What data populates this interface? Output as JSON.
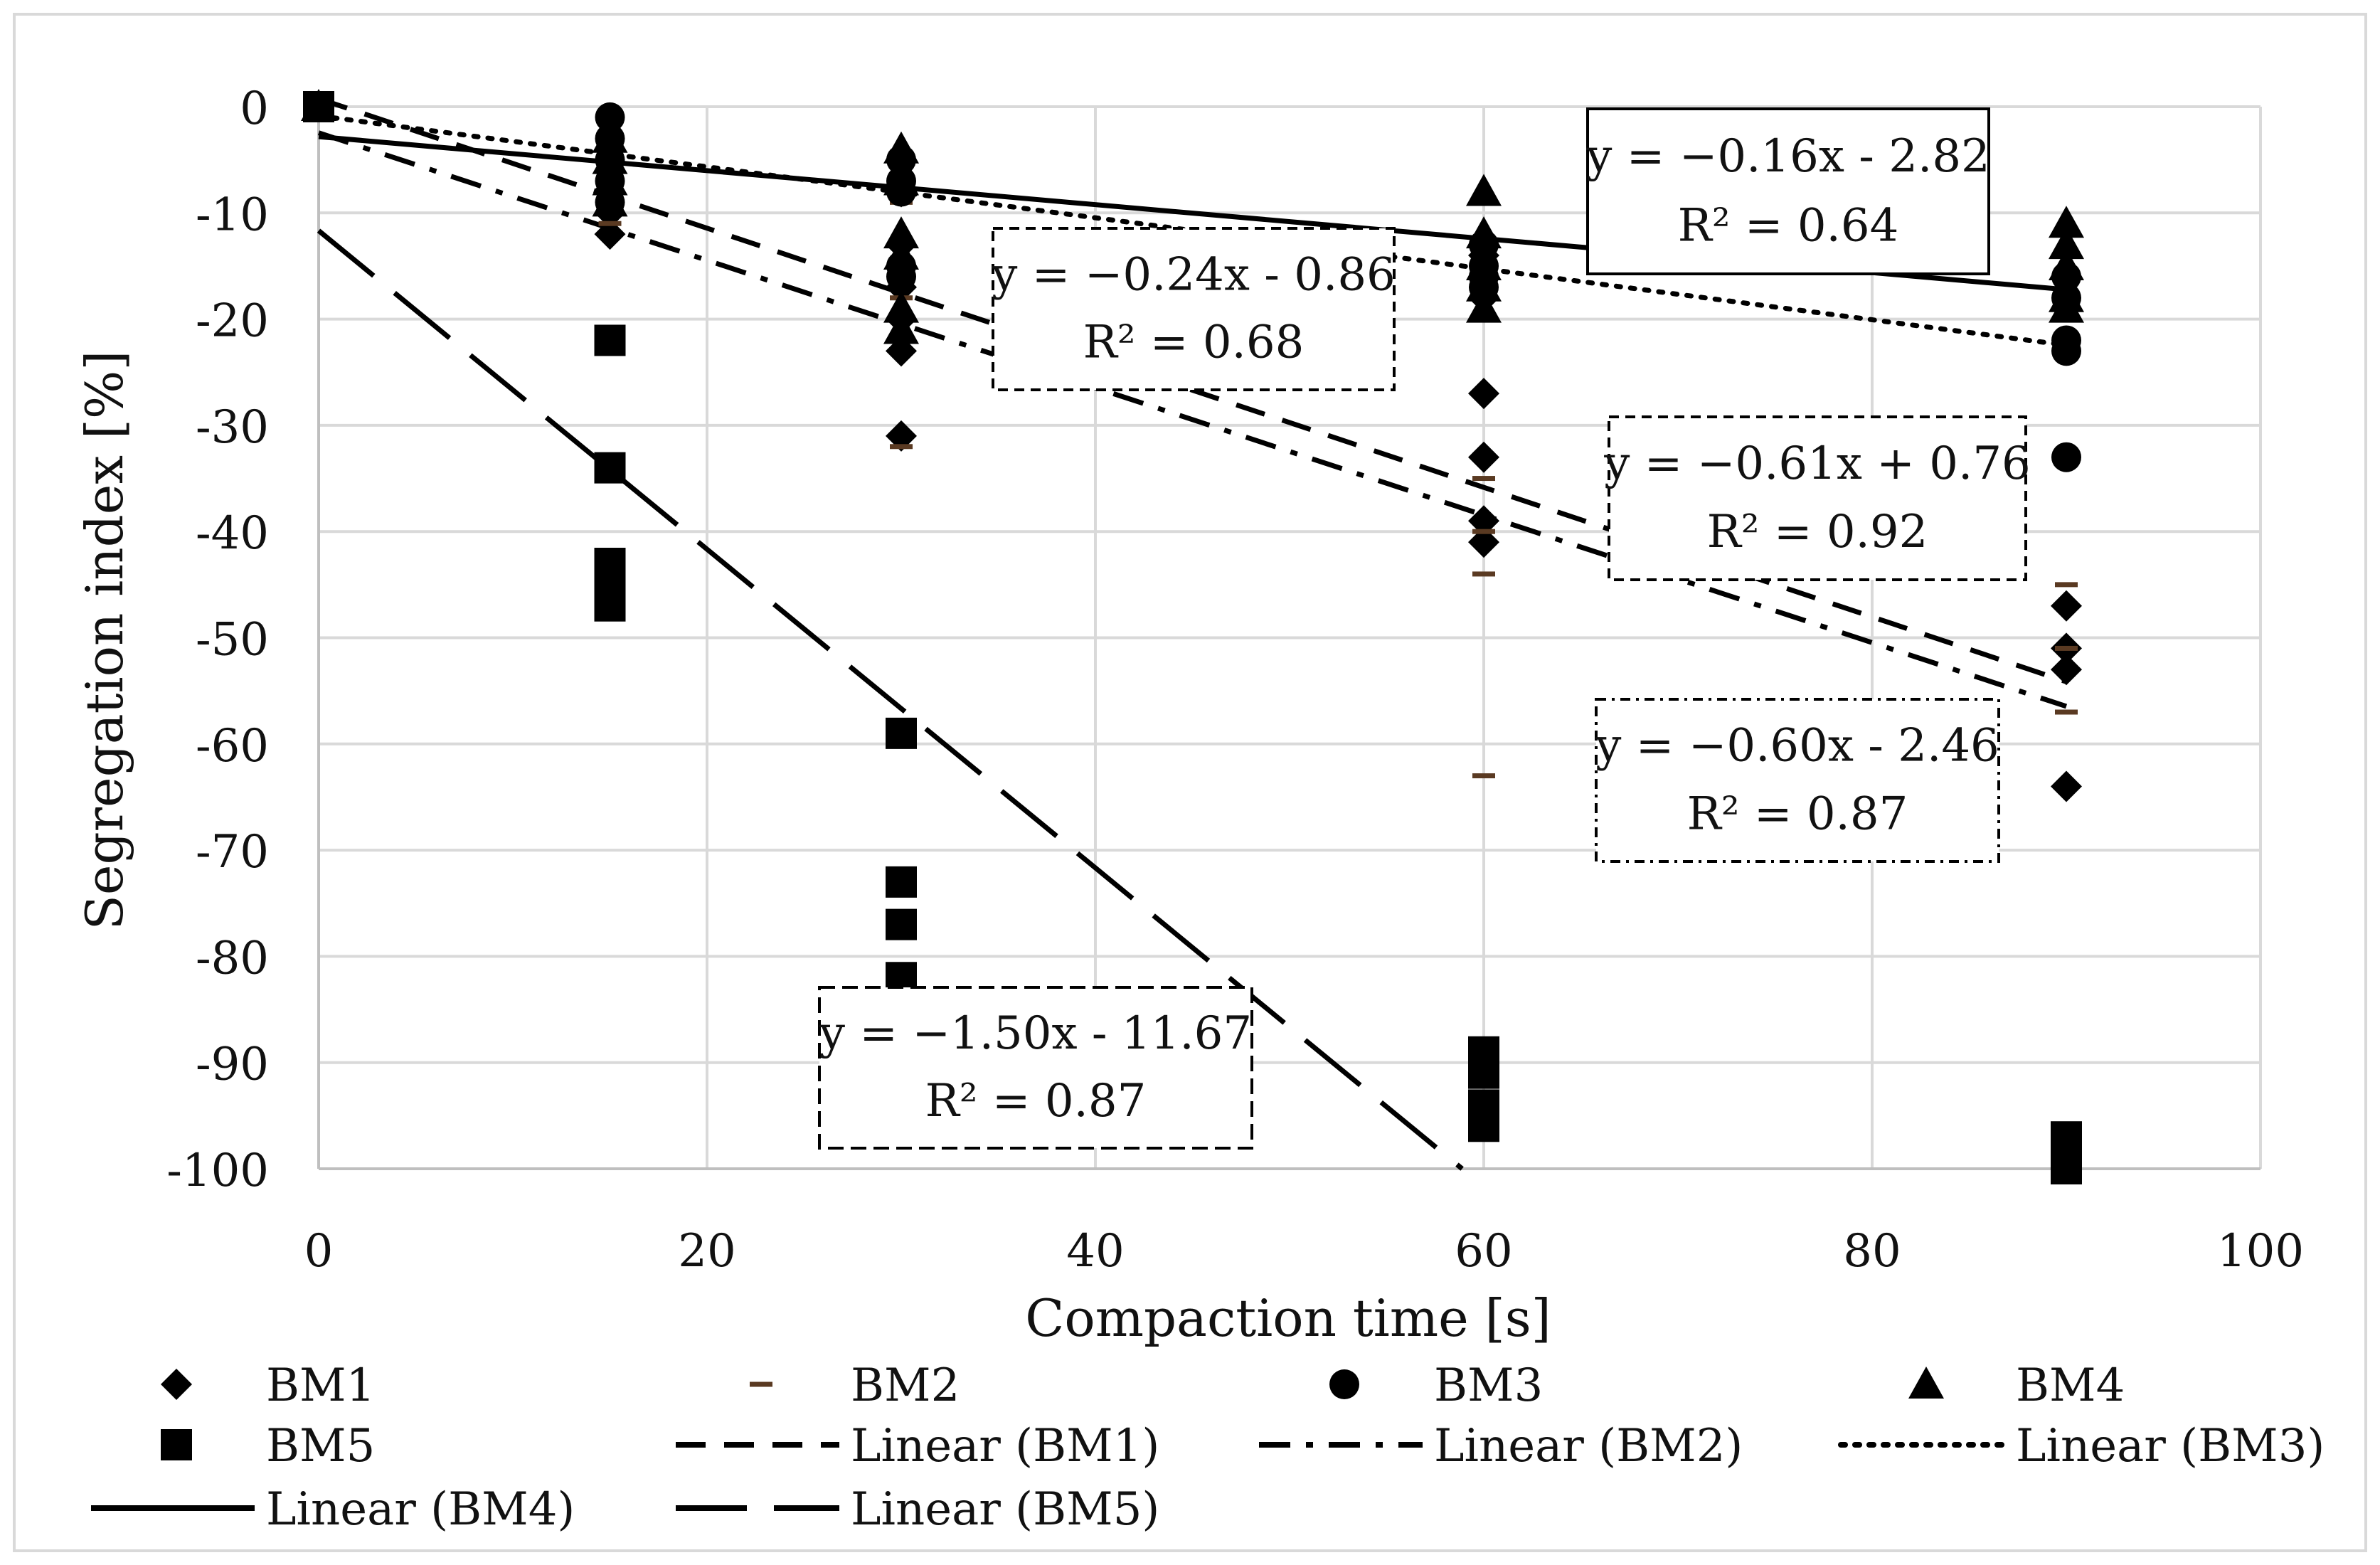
{
  "chart_data": {
    "type": "scatter",
    "title": "",
    "xlabel": "Compaction time [s]",
    "ylabel": "Segregation index [%]",
    "xlim": [
      0,
      100
    ],
    "ylim": [
      -100,
      0
    ],
    "x_ticks": [
      0,
      20,
      40,
      60,
      80,
      100
    ],
    "y_ticks": [
      0,
      -10,
      -20,
      -30,
      -40,
      -50,
      -60,
      -70,
      -80,
      -90,
      -100
    ],
    "grid": true,
    "legend_position": "bottom",
    "series": [
      {
        "name": "BM1",
        "marker": "diamond",
        "points": [
          [
            0,
            0
          ],
          [
            15,
            -4
          ],
          [
            15,
            -6
          ],
          [
            15,
            -8
          ],
          [
            15,
            -10
          ],
          [
            15,
            -12
          ],
          [
            30,
            -8
          ],
          [
            30,
            -13
          ],
          [
            30,
            -17
          ],
          [
            30,
            -20
          ],
          [
            30,
            -23
          ],
          [
            30,
            -31
          ],
          [
            60,
            -14
          ],
          [
            60,
            -18
          ],
          [
            60,
            -27
          ],
          [
            60,
            -33
          ],
          [
            60,
            -39
          ],
          [
            60,
            -41
          ],
          [
            90,
            -47
          ],
          [
            90,
            -51
          ],
          [
            90,
            -53
          ],
          [
            90,
            -64
          ]
        ]
      },
      {
        "name": "BM2",
        "marker": "dash",
        "points": [
          [
            0,
            0
          ],
          [
            15,
            -5
          ],
          [
            15,
            -7
          ],
          [
            15,
            -9
          ],
          [
            15,
            -11
          ],
          [
            30,
            -9
          ],
          [
            30,
            -13
          ],
          [
            30,
            -18
          ],
          [
            30,
            -22
          ],
          [
            30,
            -32
          ],
          [
            60,
            -17
          ],
          [
            60,
            -20
          ],
          [
            60,
            -35
          ],
          [
            60,
            -40
          ],
          [
            60,
            -44
          ],
          [
            60,
            -63
          ],
          [
            90,
            -45
          ],
          [
            90,
            -51
          ],
          [
            90,
            -57
          ]
        ]
      },
      {
        "name": "BM3",
        "marker": "circle",
        "points": [
          [
            0,
            0
          ],
          [
            15,
            -1
          ],
          [
            15,
            -3
          ],
          [
            15,
            -5
          ],
          [
            15,
            -7
          ],
          [
            15,
            -9
          ],
          [
            30,
            -5
          ],
          [
            30,
            -7
          ],
          [
            30,
            -8
          ],
          [
            30,
            -15
          ],
          [
            30,
            -16
          ],
          [
            60,
            -13
          ],
          [
            60,
            -15
          ],
          [
            60,
            -16
          ],
          [
            60,
            -17
          ],
          [
            90,
            -16
          ],
          [
            90,
            -18
          ],
          [
            90,
            -22
          ],
          [
            90,
            -23
          ],
          [
            90,
            -33
          ]
        ]
      },
      {
        "name": "BM4",
        "marker": "triangle",
        "points": [
          [
            0,
            0
          ],
          [
            15,
            -3
          ],
          [
            15,
            -5
          ],
          [
            15,
            -7
          ],
          [
            15,
            -9
          ],
          [
            30,
            -4
          ],
          [
            30,
            -7
          ],
          [
            30,
            -12
          ],
          [
            30,
            -14
          ],
          [
            30,
            -19
          ],
          [
            30,
            -21
          ],
          [
            60,
            -8
          ],
          [
            60,
            -12
          ],
          [
            60,
            -15
          ],
          [
            60,
            -17
          ],
          [
            60,
            -19
          ],
          [
            90,
            -11
          ],
          [
            90,
            -13
          ],
          [
            90,
            -15
          ],
          [
            90,
            -18
          ],
          [
            90,
            -19
          ]
        ]
      },
      {
        "name": "BM5",
        "marker": "square",
        "points": [
          [
            0,
            0
          ],
          [
            15,
            -22
          ],
          [
            15,
            -34
          ],
          [
            15,
            -43
          ],
          [
            15,
            -45
          ],
          [
            15,
            -47
          ],
          [
            30,
            -59
          ],
          [
            30,
            -73
          ],
          [
            30,
            -77
          ],
          [
            30,
            -82
          ],
          [
            60,
            -89
          ],
          [
            60,
            -91
          ],
          [
            60,
            -94
          ],
          [
            60,
            -96
          ],
          [
            90,
            -97
          ],
          [
            90,
            -98
          ],
          [
            90,
            -99
          ],
          [
            90,
            -100
          ]
        ]
      }
    ],
    "trendlines": [
      {
        "name": "Linear (BM1)",
        "dash": "dashed",
        "slope": -0.61,
        "intercept": 0.76,
        "equation": "y = −0.61x + 0.76",
        "r2": "R² = 0.92"
      },
      {
        "name": "Linear (BM2)",
        "dash": "dash-dot",
        "slope": -0.6,
        "intercept": -2.46,
        "equation": "y = −0.60x - 2.46",
        "r2": "R² = 0.87"
      },
      {
        "name": "Linear (BM3)",
        "dash": "dotted",
        "slope": -0.24,
        "intercept": -0.86,
        "equation": "y = −0.24x - 0.86",
        "r2": "R² = 0.68"
      },
      {
        "name": "Linear (BM4)",
        "dash": "solid",
        "slope": -0.16,
        "intercept": -2.82,
        "equation": "y = −0.16x - 2.82",
        "r2": "R² = 0.64"
      },
      {
        "name": "Linear (BM5)",
        "dash": "long-dash",
        "slope": -1.5,
        "intercept": -11.67,
        "equation": "y = −1.50x - 11.67",
        "r2": "R² = 0.87"
      }
    ],
    "legend": [
      "BM1",
      "BM2",
      "BM3",
      "BM4",
      "BM5",
      "Linear (BM1)",
      "Linear (BM2)",
      "Linear (BM3)",
      "Linear (BM4)",
      "Linear (BM5)"
    ]
  }
}
